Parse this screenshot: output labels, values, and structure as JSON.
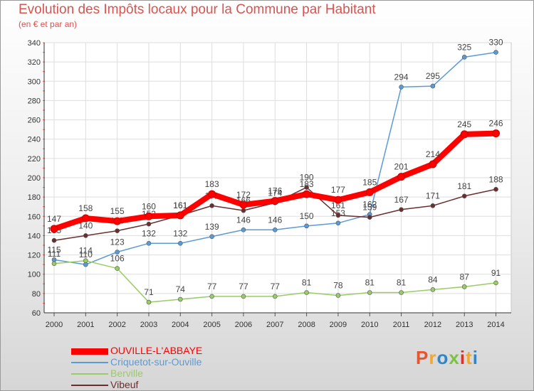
{
  "header": {
    "title": "Evolution des Impôts locaux pour la Commune par Habitant",
    "subtitle": "(en € et par an)"
  },
  "logo": {
    "text": "Proxiti",
    "colors": [
      "#e8542d",
      "#f0a830",
      "#2f86c7",
      "#7cc242",
      "#d9322b",
      "#f0a830",
      "#2f86c7"
    ]
  },
  "chart_data": {
    "type": "line",
    "title": "Evolution des Impôts locaux pour la Commune par Habitant",
    "subtitle": "(en € et par an)",
    "xlabel": "",
    "ylabel": "",
    "x": [
      2000,
      2001,
      2002,
      2003,
      2004,
      2005,
      2006,
      2007,
      2008,
      2009,
      2010,
      2011,
      2012,
      2013,
      2014
    ],
    "ylim": [
      60,
      340
    ],
    "yticks": [
      60,
      80,
      100,
      120,
      140,
      160,
      180,
      200,
      220,
      240,
      260,
      280,
      300,
      320,
      340
    ],
    "grid": true,
    "legend_position": "bottom-left",
    "series": [
      {
        "name": "OUVILLE-L'ABBAYE",
        "color": "#ff0000",
        "values": [
          147,
          158,
          155,
          160,
          161,
          183,
          172,
          176,
          183,
          177,
          185,
          201,
          214,
          245,
          246
        ]
      },
      {
        "name": "Criquetot-sur-Ouville",
        "color": "#5b9bd5",
        "values": [
          115,
          110,
          123,
          132,
          132,
          139,
          146,
          146,
          150,
          153,
          162,
          294,
          295,
          325,
          330
        ]
      },
      {
        "name": "Berville",
        "color": "#99cc66",
        "values": [
          111,
          114,
          106,
          71,
          74,
          77,
          77,
          77,
          81,
          78,
          81,
          81,
          84,
          87,
          91
        ]
      },
      {
        "name": "Vibeuf",
        "color": "#6b2e2e",
        "values": [
          135,
          140,
          145,
          152,
          161,
          171,
          166,
          174,
          190,
          161,
          159,
          167,
          171,
          181,
          188
        ]
      }
    ]
  }
}
